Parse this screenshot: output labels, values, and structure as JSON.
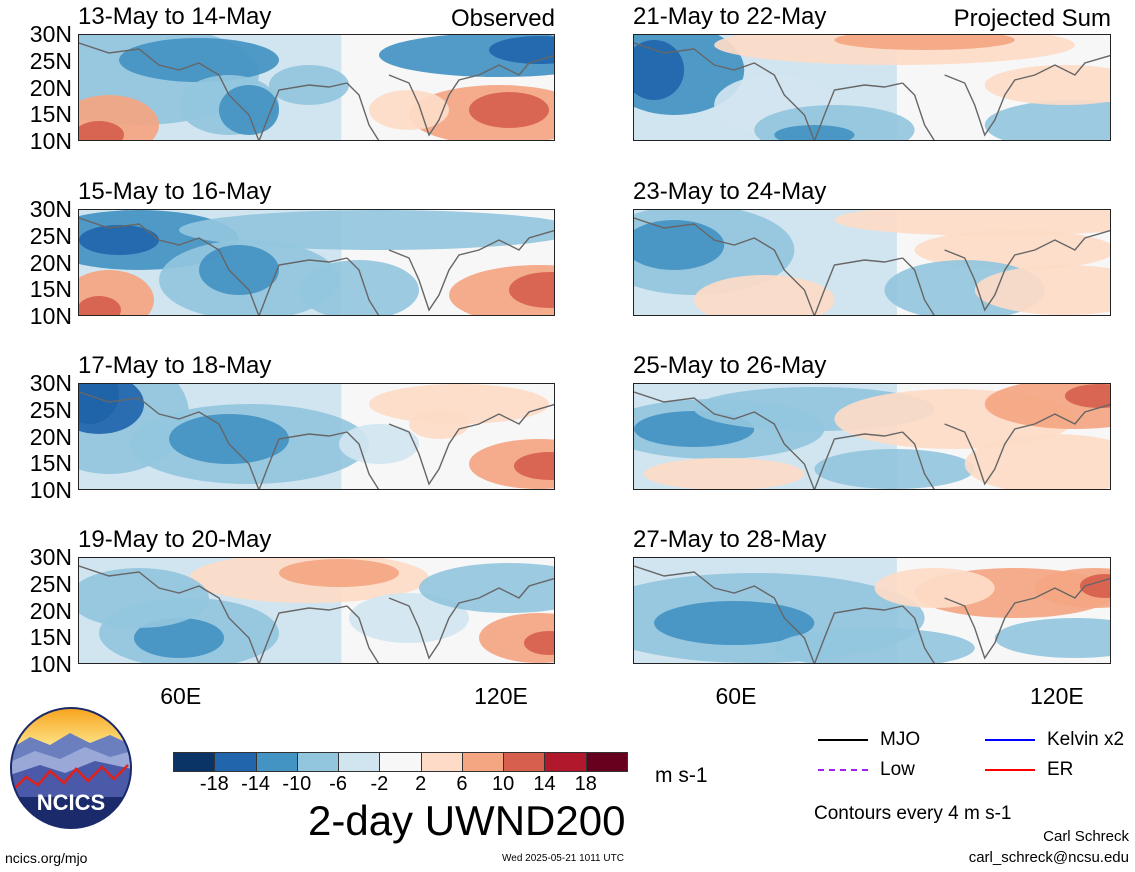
{
  "panels": [
    {
      "title": "13-May to 14-May",
      "tag": "Observed",
      "col": 0,
      "row": 0,
      "variant": 0
    },
    {
      "title": "15-May to 16-May",
      "tag": "",
      "col": 0,
      "row": 1,
      "variant": 1
    },
    {
      "title": "17-May to 18-May",
      "tag": "",
      "col": 0,
      "row": 2,
      "variant": 2
    },
    {
      "title": "19-May to 20-May",
      "tag": "",
      "col": 0,
      "row": 3,
      "variant": 3
    },
    {
      "title": "21-May to 22-May",
      "tag": "Projected Sum",
      "col": 1,
      "row": 0,
      "variant": 4
    },
    {
      "title": "23-May to 24-May",
      "tag": "",
      "col": 1,
      "row": 1,
      "variant": 5
    },
    {
      "title": "25-May to 26-May",
      "tag": "",
      "col": 1,
      "row": 2,
      "variant": 6
    },
    {
      "title": "27-May to 28-May",
      "tag": "",
      "col": 1,
      "row": 3,
      "variant": 7
    }
  ],
  "y_ticks": [
    "30N",
    "25N",
    "20N",
    "15N",
    "10N"
  ],
  "x_ticks": [
    "60E",
    "120E"
  ],
  "colorbar": {
    "colors": [
      "#0a3466",
      "#2166ac",
      "#4393c3",
      "#92c5de",
      "#d1e5f0",
      "#f7f7f7",
      "#fddbc7",
      "#f4a582",
      "#d6604d",
      "#b2182b",
      "#67001f"
    ],
    "labels": [
      "-18",
      "-14",
      "-10",
      "-6",
      "-2",
      "2",
      "6",
      "10",
      "14",
      "18"
    ],
    "units": "m s-1"
  },
  "main_title": "2-day UWND200",
  "legend": [
    {
      "label": "MJO",
      "color": "#000000",
      "style": "solid"
    },
    {
      "label": "Kelvin x2",
      "color": "#0000ff",
      "style": "solid"
    },
    {
      "label": "Low",
      "color": "#a020f0",
      "style": "dashed"
    },
    {
      "label": "ER",
      "color": "#ff0000",
      "style": "solid"
    }
  ],
  "contours_note": "Contours every 4 m s-1",
  "logo_text": "NCICS",
  "footer": {
    "left": "ncics.org/mjo",
    "center": "Wed 2025-05-21 1011 UTC",
    "author": "Carl Schreck",
    "email": "carl_schreck@ncsu.edu"
  }
}
